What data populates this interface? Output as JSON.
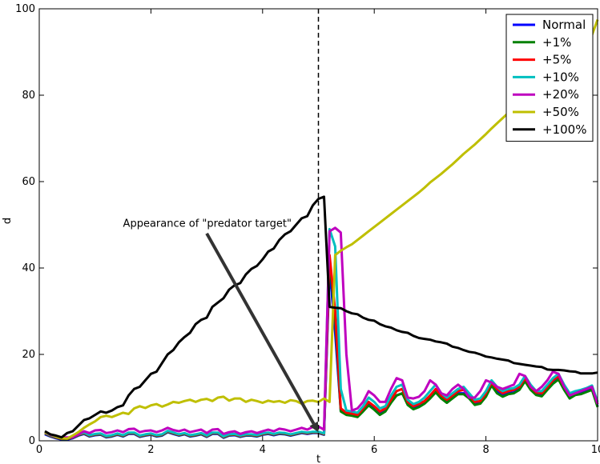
{
  "chart_data": {
    "type": "line",
    "xlabel": "t",
    "ylabel": "d",
    "xlim": [
      0,
      10
    ],
    "ylim": [
      0,
      100
    ],
    "xticks": [
      0,
      2,
      4,
      6,
      8,
      10
    ],
    "yticks": [
      0,
      20,
      40,
      60,
      80,
      100
    ],
    "grid": false,
    "legend_position": "top-right",
    "vline": {
      "x": 5.0,
      "style": "dashed",
      "color": "#000000"
    },
    "annotation": {
      "text": "Appearance of \"predator target\"",
      "text_at": [
        1.5,
        49.5
      ],
      "arrow_from": [
        3.0,
        48.0
      ],
      "arrow_to": [
        5.0,
        2.0
      ]
    },
    "x": [
      0.1,
      0.2,
      0.3,
      0.4,
      0.5,
      0.6,
      0.7,
      0.8,
      0.9,
      1.0,
      1.1,
      1.2,
      1.3,
      1.4,
      1.5,
      1.6,
      1.7,
      1.8,
      1.9,
      2.0,
      2.1,
      2.2,
      2.3,
      2.4,
      2.5,
      2.6,
      2.7,
      2.8,
      2.9,
      3.0,
      3.1,
      3.2,
      3.3,
      3.4,
      3.5,
      3.6,
      3.7,
      3.8,
      3.9,
      4.0,
      4.1,
      4.2,
      4.3,
      4.4,
      4.5,
      4.6,
      4.7,
      4.8,
      4.9,
      5.0,
      5.1,
      5.2,
      5.3,
      5.4,
      5.5,
      5.6,
      5.7,
      5.8,
      5.9,
      6.0,
      6.1,
      6.2,
      6.3,
      6.4,
      6.5,
      6.6,
      6.7,
      6.8,
      6.9,
      7.0,
      7.1,
      7.2,
      7.3,
      7.4,
      7.5,
      7.6,
      7.7,
      7.8,
      7.9,
      8.0,
      8.1,
      8.2,
      8.3,
      8.4,
      8.5,
      8.6,
      8.7,
      8.8,
      8.9,
      9.0,
      9.1,
      9.2,
      9.3,
      9.4,
      9.5,
      9.6,
      9.7,
      9.8,
      9.9,
      10.0
    ],
    "series": [
      {
        "name": "Normal",
        "color": "#0000ff",
        "values": [
          1.5,
          1.0,
          0.6,
          0.3,
          0.3,
          0.6,
          1.2,
          1.6,
          1.0,
          1.3,
          1.4,
          0.8,
          1.0,
          1.4,
          1.0,
          1.6,
          1.6,
          0.9,
          1.2,
          1.4,
          1.0,
          1.2,
          2.0,
          1.6,
          1.2,
          1.5,
          1.0,
          1.2,
          1.5,
          0.9,
          1.6,
          1.6,
          0.7,
          1.2,
          1.3,
          0.9,
          1.2,
          1.2,
          1.0,
          1.4,
          1.6,
          1.3,
          1.6,
          1.5,
          1.2,
          1.5,
          1.8,
          1.6,
          1.8,
          1.8,
          1.4,
          40.0,
          25.0,
          7.0,
          6.2,
          6.0,
          5.8,
          7.0,
          8.5,
          7.5,
          6.2,
          7.0,
          9.0,
          10.5,
          11.0,
          8.5,
          7.5,
          8.0,
          8.8,
          10.0,
          11.5,
          10.0,
          9.0,
          10.0,
          11.0,
          11.0,
          10.0,
          8.5,
          8.8,
          10.5,
          13.0,
          11.5,
          10.5,
          11.0,
          11.2,
          12.0,
          14.0,
          12.0,
          10.8,
          10.5,
          12.0,
          13.5,
          14.5,
          12.0,
          10.0,
          10.8,
          11.0,
          11.5,
          12.0,
          8.0
        ]
      },
      {
        "name": "+1%",
        "color": "#008000",
        "values": [
          1.7,
          1.1,
          0.7,
          0.4,
          0.4,
          0.7,
          1.3,
          1.7,
          1.1,
          1.4,
          1.5,
          0.9,
          1.1,
          1.5,
          1.1,
          1.7,
          1.7,
          1.0,
          1.3,
          1.5,
          1.1,
          1.3,
          2.1,
          1.7,
          1.3,
          1.6,
          1.1,
          1.3,
          1.6,
          1.0,
          1.7,
          1.7,
          0.8,
          1.3,
          1.4,
          1.0,
          1.3,
          1.3,
          1.1,
          1.5,
          1.7,
          1.4,
          1.7,
          1.6,
          1.3,
          1.6,
          1.9,
          1.7,
          1.9,
          1.9,
          1.5,
          42.0,
          28.0,
          6.8,
          6.0,
          5.8,
          5.5,
          6.8,
          8.2,
          7.2,
          6.0,
          6.8,
          8.8,
          10.5,
          11.0,
          8.3,
          7.3,
          7.8,
          8.6,
          9.8,
          11.2,
          9.8,
          8.8,
          9.8,
          10.8,
          10.8,
          9.8,
          8.3,
          8.6,
          10.2,
          12.8,
          11.0,
          10.2,
          10.8,
          11.0,
          11.8,
          13.8,
          11.8,
          10.6,
          10.3,
          11.8,
          13.2,
          14.2,
          11.8,
          9.8,
          10.6,
          10.8,
          11.3,
          11.8,
          7.8
        ]
      },
      {
        "name": "+5%",
        "color": "#ff0000",
        "values": [
          1.8,
          1.2,
          0.8,
          0.5,
          0.5,
          0.8,
          1.4,
          1.8,
          1.2,
          1.5,
          1.6,
          1.0,
          1.2,
          1.6,
          1.2,
          1.8,
          1.8,
          1.1,
          1.4,
          1.6,
          1.2,
          1.4,
          2.2,
          1.8,
          1.4,
          1.7,
          1.2,
          1.4,
          1.7,
          1.1,
          1.8,
          1.8,
          0.9,
          1.4,
          1.5,
          1.1,
          1.4,
          1.4,
          1.2,
          1.6,
          1.8,
          1.5,
          1.8,
          1.7,
          1.4,
          1.7,
          2.0,
          1.8,
          2.0,
          2.0,
          1.6,
          43.0,
          30.0,
          7.5,
          6.5,
          6.3,
          6.0,
          7.5,
          9.0,
          8.0,
          6.8,
          7.5,
          9.5,
          11.5,
          12.0,
          9.0,
          8.0,
          8.5,
          9.2,
          10.5,
          12.0,
          10.5,
          9.5,
          10.5,
          11.5,
          11.8,
          10.5,
          9.0,
          9.2,
          11.0,
          13.5,
          12.0,
          11.0,
          11.5,
          11.8,
          12.5,
          14.5,
          12.5,
          11.2,
          11.0,
          12.5,
          14.0,
          15.0,
          12.5,
          10.8,
          11.2,
          11.5,
          12.0,
          12.5,
          8.5
        ]
      },
      {
        "name": "+10%",
        "color": "#00bfbf",
        "values": [
          1.9,
          1.3,
          0.9,
          0.6,
          0.6,
          0.9,
          1.5,
          1.9,
          1.3,
          1.6,
          1.7,
          1.1,
          1.3,
          1.7,
          1.3,
          1.9,
          1.9,
          1.2,
          1.5,
          1.7,
          1.3,
          1.5,
          2.3,
          1.9,
          1.5,
          1.8,
          1.3,
          1.5,
          1.8,
          1.2,
          1.9,
          1.9,
          1.0,
          1.5,
          1.6,
          1.2,
          1.5,
          1.5,
          1.3,
          1.7,
          1.9,
          1.6,
          1.9,
          1.8,
          1.5,
          1.8,
          2.1,
          1.9,
          2.1,
          2.1,
          1.7,
          49.0,
          45.0,
          12.0,
          7.0,
          6.8,
          6.5,
          8.0,
          10.0,
          9.0,
          7.5,
          8.0,
          10.5,
          12.5,
          13.0,
          9.5,
          8.5,
          9.0,
          10.0,
          11.5,
          13.0,
          11.0,
          10.0,
          11.0,
          12.0,
          12.5,
          11.0,
          9.5,
          9.8,
          11.5,
          14.0,
          12.5,
          11.5,
          12.0,
          12.2,
          13.0,
          15.0,
          13.0,
          11.5,
          11.5,
          13.0,
          14.5,
          15.5,
          13.0,
          11.0,
          11.5,
          11.8,
          12.2,
          12.8,
          9.0
        ]
      },
      {
        "name": "+20%",
        "color": "#bf00bf",
        "values": [
          2.0,
          1.4,
          1.0,
          0.8,
          0.8,
          0.8,
          1.5,
          2.2,
          1.8,
          2.4,
          2.5,
          1.8,
          2.0,
          2.4,
          2.0,
          2.7,
          2.8,
          2.0,
          2.3,
          2.4,
          2.0,
          2.4,
          3.0,
          2.5,
          2.2,
          2.6,
          2.0,
          2.3,
          2.6,
          1.8,
          2.6,
          2.7,
          1.6,
          2.0,
          2.2,
          1.6,
          2.0,
          2.2,
          1.8,
          2.2,
          2.6,
          2.2,
          2.8,
          2.6,
          2.2,
          2.6,
          3.0,
          2.6,
          3.2,
          3.3,
          2.6,
          48.5,
          49.3,
          48.2,
          20.0,
          7.0,
          7.5,
          9.0,
          11.5,
          10.5,
          9.0,
          9.0,
          12.0,
          14.5,
          14.0,
          10.0,
          9.8,
          10.2,
          11.5,
          14.0,
          13.0,
          11.0,
          10.5,
          12.0,
          13.0,
          12.0,
          10.0,
          10.0,
          11.5,
          14.0,
          13.5,
          12.5,
          12.0,
          12.5,
          13.0,
          15.5,
          15.0,
          12.5,
          11.5,
          12.5,
          14.0,
          16.0,
          15.5,
          12.5,
          10.5,
          11.0,
          11.5,
          12.0,
          12.5,
          8.5
        ]
      },
      {
        "name": "+50%",
        "color": "#bfbf00",
        "values": [
          2.0,
          1.5,
          1.0,
          0.6,
          0.5,
          1.2,
          2.0,
          3.0,
          3.8,
          4.5,
          5.5,
          5.8,
          5.5,
          6.0,
          6.5,
          6.2,
          7.5,
          8.0,
          7.6,
          8.2,
          8.5,
          7.9,
          8.4,
          9.0,
          8.8,
          9.2,
          9.5,
          9.0,
          9.5,
          9.7,
          9.2,
          10.0,
          10.2,
          9.3,
          9.8,
          9.8,
          9.0,
          9.5,
          9.2,
          8.8,
          9.3,
          9.0,
          9.2,
          8.8,
          9.4,
          9.2,
          8.6,
          9.2,
          9.3,
          9.0,
          9.8,
          9.0,
          43.0,
          44.0,
          44.8,
          45.5,
          46.5,
          47.5,
          48.5,
          49.5,
          50.5,
          51.5,
          52.5,
          53.5,
          54.5,
          55.5,
          56.5,
          57.5,
          58.6,
          59.8,
          60.8,
          61.8,
          62.9,
          64.0,
          65.2,
          66.4,
          67.5,
          68.6,
          69.8,
          71.0,
          72.3,
          73.5,
          74.7,
          75.9,
          77.1,
          78.3,
          79.5,
          80.7,
          81.9,
          83.1,
          84.3,
          85.5,
          86.7,
          87.9,
          89.1,
          90.3,
          91.5,
          92.7,
          93.9,
          97.5
        ]
      },
      {
        "name": "+100%",
        "color": "#000000",
        "values": [
          2.2,
          1.5,
          1.2,
          0.8,
          1.8,
          2.2,
          3.5,
          4.8,
          5.2,
          6.0,
          6.8,
          6.5,
          7.0,
          7.8,
          8.2,
          10.5,
          12.0,
          12.5,
          14.0,
          15.5,
          16.0,
          18.0,
          20.0,
          21.0,
          22.8,
          24.0,
          25.0,
          27.0,
          28.0,
          28.5,
          31.0,
          32.0,
          33.0,
          35.0,
          36.0,
          36.5,
          38.5,
          39.8,
          40.5,
          42.0,
          43.8,
          44.5,
          46.5,
          47.8,
          48.5,
          50.0,
          51.5,
          52.0,
          54.5,
          56.0,
          56.5,
          31.0,
          30.8,
          30.7,
          30.0,
          29.5,
          29.3,
          28.5,
          28.0,
          27.8,
          27.0,
          26.5,
          26.2,
          25.6,
          25.2,
          25.0,
          24.3,
          23.8,
          23.6,
          23.4,
          23.0,
          22.8,
          22.5,
          21.8,
          21.5,
          21.0,
          20.6,
          20.4,
          20.0,
          19.5,
          19.3,
          19.0,
          18.8,
          18.6,
          18.0,
          17.8,
          17.6,
          17.4,
          17.2,
          17.1,
          16.5,
          16.4,
          16.4,
          16.3,
          16.1,
          16.0,
          15.6,
          15.6,
          15.6,
          15.8
        ]
      }
    ]
  }
}
